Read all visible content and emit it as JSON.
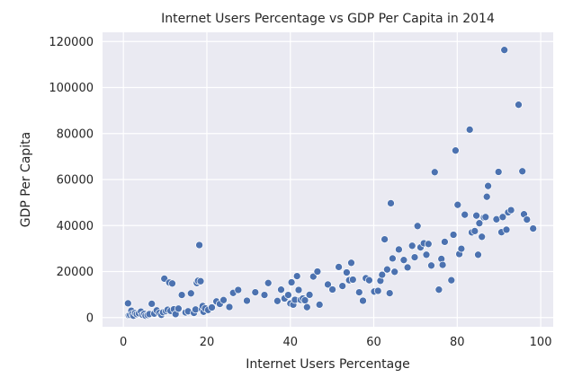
{
  "chart_data": {
    "type": "scatter",
    "title": "Internet Users Percentage vs GDP Per Capita in 2014",
    "xlabel": "Internet Users Percentage",
    "ylabel": "GDP Per Capita",
    "xlim": [
      -5,
      103
    ],
    "ylim": [
      -4000,
      124000
    ],
    "xticks": [
      0,
      20,
      40,
      60,
      80,
      100
    ],
    "yticks": [
      0,
      20000,
      40000,
      60000,
      80000,
      100000,
      120000
    ],
    "xtick_labels": [
      "0",
      "20",
      "40",
      "60",
      "80",
      "100"
    ],
    "ytick_labels": [
      "0",
      "20000",
      "40000",
      "60000",
      "80000",
      "100000",
      "120000"
    ],
    "grid": true,
    "point_color": "#4c72b0",
    "background_color": "#eaeaf2",
    "series": [
      {
        "x": [
          1.1,
          1.3,
          1.6,
          1.9,
          2.1,
          2.4,
          2.8,
          3.2,
          3.7,
          4.2,
          4.6,
          5.0,
          5.3,
          5.8,
          6.2,
          6.8,
          7.4,
          8.0,
          8.6,
          9.1,
          9.5,
          9.8,
          10.2,
          10.6,
          11.0,
          11.3,
          11.7,
          12.1,
          12.5,
          13.2,
          14.0,
          14.9,
          15.5,
          16.2,
          16.9,
          17.3,
          17.6,
          17.9,
          18.2,
          18.5,
          18.8,
          19.0,
          19.2,
          19.6,
          20.3,
          21.2,
          22.3,
          23.1,
          24.0,
          25.4,
          26.3,
          27.5,
          29.6,
          31.6,
          33.8,
          34.7,
          36.9,
          37.8,
          38.6,
          39.5,
          40.0,
          40.3,
          40.7,
          41.1,
          41.6,
          42.0,
          42.5,
          43.0,
          43.5,
          44.0,
          44.6,
          45.5,
          46.5,
          47.0,
          49.0,
          50.1,
          51.6,
          52.5,
          53.5,
          54.1,
          54.6,
          55.0,
          56.5,
          57.4,
          58.1,
          58.9,
          60.1,
          61.0,
          61.6,
          62.0,
          62.6,
          63.2,
          63.8,
          64.1,
          64.5,
          65.0,
          66.0,
          67.2,
          68.1,
          69.2,
          69.8,
          70.5,
          71.2,
          72.0,
          72.6,
          73.1,
          73.8,
          74.6,
          75.6,
          76.2,
          76.5,
          77.0,
          78.6,
          79.1,
          79.6,
          80.1,
          80.5,
          81.0,
          81.8,
          83.0,
          83.5,
          84.2,
          84.6,
          85.0,
          85.3,
          85.9,
          86.4,
          86.8,
          87.1,
          87.4,
          89.4,
          89.9,
          90.6,
          90.9,
          91.3,
          91.8,
          92.2,
          92.9,
          94.7,
          95.6,
          96.0,
          96.7,
          98.2
        ],
        "y": [
          6200,
          1000,
          1200,
          3000,
          1500,
          800,
          2000,
          1500,
          1800,
          2600,
          1200,
          1600,
          800,
          1100,
          1500,
          6000,
          1700,
          3100,
          2000,
          1200,
          2300,
          16900,
          2800,
          3400,
          15200,
          2900,
          14800,
          3600,
          1500,
          3900,
          9800,
          2200,
          2700,
          10500,
          2000,
          3500,
          15000,
          16000,
          31500,
          15800,
          3700,
          5000,
          2500,
          4000,
          3300,
          4400,
          7000,
          5900,
          7600,
          4600,
          10700,
          12000,
          7300,
          11000,
          9800,
          15000,
          7200,
          12100,
          8300,
          9800,
          6100,
          15300,
          5600,
          7700,
          18000,
          12000,
          7700,
          8300,
          7500,
          4500,
          9900,
          17800,
          20000,
          5600,
          14400,
          12200,
          22000,
          13700,
          19600,
          16200,
          23800,
          16500,
          11000,
          7300,
          17100,
          16200,
          11300,
          11600,
          16000,
          18600,
          34000,
          20900,
          10600,
          49700,
          25700,
          19900,
          29600,
          25000,
          21800,
          31200,
          26200,
          39800,
          30500,
          32300,
          27300,
          32000,
          22600,
          63200,
          12100,
          25500,
          22900,
          32900,
          16200,
          36000,
          72600,
          49000,
          27600,
          29900,
          44700,
          81700,
          37000,
          37600,
          44300,
          27300,
          41000,
          35100,
          43500,
          43700,
          52500,
          57200,
          42700,
          63300,
          37100,
          43700,
          116300,
          38200,
          45700,
          46700,
          92500,
          63600,
          44900,
          42600,
          38700
        ]
      }
    ]
  }
}
